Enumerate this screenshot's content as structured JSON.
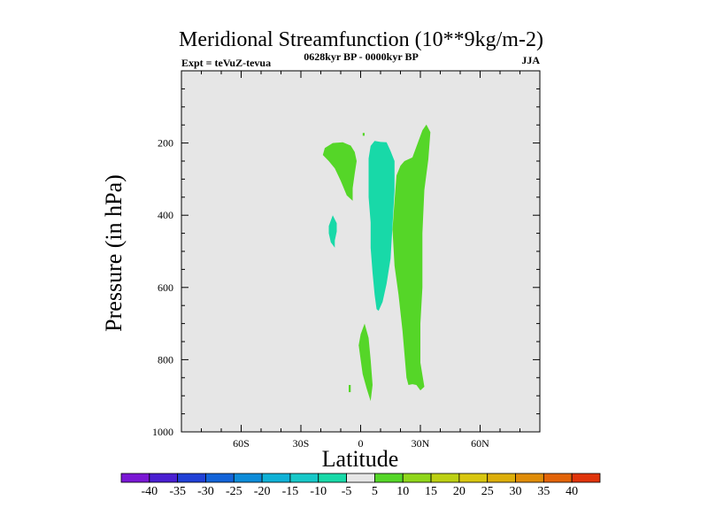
{
  "chart_data": {
    "type": "contour",
    "title": "Meridional Streamfunction (10**9kg/m-2)",
    "left_string": "Expt = teVuZ-tevua",
    "center_string": "0628kyr BP - 0000kyr BP",
    "right_string": "JJA",
    "xlabel": "Latitude",
    "ylabel": "Pressure (in hPa)",
    "x_ticks": [
      "60S",
      "30S",
      "0",
      "30N",
      "60N"
    ],
    "x_tick_values": [
      -60,
      -30,
      0,
      30,
      60
    ],
    "xlim": [
      -90,
      90
    ],
    "y_ticks": [
      "200",
      "400",
      "600",
      "800",
      "1000"
    ],
    "y_tick_values": [
      200,
      400,
      600,
      800,
      1000
    ],
    "ylim": [
      0,
      1000
    ],
    "y_reversed": true,
    "background_color": "#e6e6e6",
    "colorbar": {
      "labels": [
        "-40",
        "-35",
        "-30",
        "-25",
        "-20",
        "-15",
        "-10",
        "-5",
        "5",
        "10",
        "15",
        "20",
        "25",
        "30",
        "35",
        "40"
      ],
      "colors": [
        "#7a17d4",
        "#4a1fd1",
        "#2040d6",
        "#1263d8",
        "#0c8bd8",
        "#0fb1d6",
        "#17c8c8",
        "#18d9a8",
        "#e6e6e6",
        "#55d628",
        "#8fd61a",
        "#bcd013",
        "#d8c60f",
        "#dcae0a",
        "#df8c08",
        "#e26308",
        "#e0340b"
      ]
    },
    "regions": [
      {
        "name": "positive-west-blob",
        "class": "5 to 10",
        "color": "#55d628",
        "points": [
          [
            -19,
            233
          ],
          [
            -18,
            214
          ],
          [
            -14,
            200
          ],
          [
            -9,
            198
          ],
          [
            -5,
            207
          ],
          [
            -3,
            225
          ],
          [
            -2,
            250
          ],
          [
            -3,
            285
          ],
          [
            -4,
            325
          ],
          [
            -4,
            360
          ],
          [
            -7,
            345
          ],
          [
            -10,
            305
          ],
          [
            -13,
            270
          ],
          [
            -16,
            250
          ]
        ]
      },
      {
        "name": "positive-northern-column",
        "class": "5 to 10",
        "color": "#55d628",
        "points": [
          [
            18,
            290
          ],
          [
            20,
            263
          ],
          [
            22,
            250
          ],
          [
            26,
            240
          ],
          [
            28,
            210
          ],
          [
            31,
            165
          ],
          [
            33,
            149
          ],
          [
            35,
            170
          ],
          [
            34,
            245
          ],
          [
            32,
            330
          ],
          [
            31,
            450
          ],
          [
            31,
            600
          ],
          [
            30,
            700
          ],
          [
            30,
            808
          ],
          [
            32,
            875
          ],
          [
            30,
            885
          ],
          [
            28,
            870
          ],
          [
            26,
            868
          ],
          [
            24,
            870
          ],
          [
            23,
            850
          ],
          [
            21,
            720
          ],
          [
            19,
            620
          ],
          [
            17,
            540
          ],
          [
            16,
            440
          ],
          [
            17,
            360
          ]
        ]
      },
      {
        "name": "negative-central-column",
        "class": "-10 to -5",
        "color": "#18d9a8",
        "points": [
          [
            4,
            243
          ],
          [
            5,
            208
          ],
          [
            7,
            194
          ],
          [
            10,
            197
          ],
          [
            13,
            198
          ],
          [
            15,
            222
          ],
          [
            17,
            250
          ],
          [
            17,
            330
          ],
          [
            16,
            430
          ],
          [
            15,
            520
          ],
          [
            13,
            590
          ],
          [
            11,
            640
          ],
          [
            9,
            665
          ],
          [
            8,
            660
          ],
          [
            7,
            620
          ],
          [
            6,
            560
          ],
          [
            5,
            490
          ],
          [
            5,
            420
          ],
          [
            4,
            350
          ]
        ]
      },
      {
        "name": "negative-small-patch",
        "class": "-10 to -5",
        "color": "#18d9a8",
        "points": [
          [
            -14,
            400
          ],
          [
            -12,
            422
          ],
          [
            -12,
            445
          ],
          [
            -13,
            470
          ],
          [
            -13,
            490
          ],
          [
            -15,
            475
          ],
          [
            -16,
            450
          ],
          [
            -16,
            430
          ]
        ]
      },
      {
        "name": "positive-lower-strip",
        "class": "5 to 10",
        "color": "#55d628",
        "points": [
          [
            0,
            730
          ],
          [
            2,
            700
          ],
          [
            4,
            740
          ],
          [
            5,
            800
          ],
          [
            6,
            870
          ],
          [
            5,
            915
          ],
          [
            3,
            880
          ],
          [
            1,
            840
          ],
          [
            0,
            800
          ],
          [
            -1,
            760
          ]
        ]
      },
      {
        "name": "positive-speck-top",
        "class": "5 to 10",
        "color": "#55d628",
        "points": [
          [
            1,
            172
          ],
          [
            2,
            172
          ],
          [
            2,
            180
          ],
          [
            1,
            180
          ]
        ]
      },
      {
        "name": "positive-speck-bottom",
        "class": "5 to 10",
        "color": "#55d628",
        "points": [
          [
            -6,
            870
          ],
          [
            -5,
            870
          ],
          [
            -5,
            890
          ],
          [
            -6,
            890
          ]
        ]
      }
    ]
  }
}
